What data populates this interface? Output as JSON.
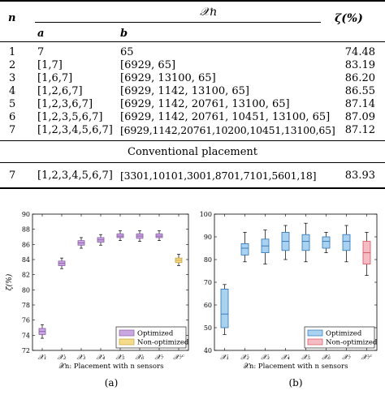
{
  "table": {
    "header": {
      "n": "n",
      "xn": "𝒳n",
      "zeta": "ζ(%)",
      "a": "a",
      "b": "b"
    },
    "rows": [
      {
        "n": "1",
        "a": "7",
        "b": "65",
        "zeta": "74.48"
      },
      {
        "n": "2",
        "a": "[1,7]",
        "b": "[6929, 65]",
        "zeta": "83.19"
      },
      {
        "n": "3",
        "a": "[1,6,7]",
        "b": "[6929, 13100, 65]",
        "zeta": "86.20"
      },
      {
        "n": "4",
        "a": "[1,2,6,7]",
        "b": "[6929, 1142, 13100, 65]",
        "zeta": "86.55"
      },
      {
        "n": "5",
        "a": "[1,2,3,6,7]",
        "b": "[6929, 1142, 20761, 13100, 65]",
        "zeta": "87.14"
      },
      {
        "n": "6",
        "a": "[1,2,3,5,6,7]",
        "b": "[6929, 1142, 20761, 10451, 13100, 65]",
        "zeta": "87.09"
      },
      {
        "n": "7",
        "a": "[1,2,3,4,5,6,7]",
        "b": "[6929,1142,20761,10200,10451,13100,65]",
        "zeta": "87.12"
      }
    ],
    "section_title": "Conventional placement",
    "conventional": {
      "n": "7",
      "a": "[1,2,3,4,5,6,7]",
      "b": "[3301,10101,3001,8701,7101,5601,18]",
      "zeta": "83.93"
    }
  },
  "chart_data": [
    {
      "type": "box",
      "panel_label": "(a)",
      "ylabel": "ζ(%)",
      "xlabel": "𝒳n: Placement with n sensors",
      "ylim": [
        72,
        90
      ],
      "yticks": [
        72,
        74,
        76,
        78,
        80,
        82,
        84,
        86,
        88,
        90
      ],
      "categories": [
        "𝒳1",
        "𝒳2",
        "𝒳3",
        "𝒳4",
        "𝒳5",
        "𝒳6",
        "𝒳7",
        "𝒳7c"
      ],
      "category_labels": [
        "𝒳₁",
        "𝒳₂",
        "𝒳₃",
        "𝒳₄",
        "𝒳₅",
        "𝒳₆",
        "𝒳₇",
        "𝒳₇ᶜ"
      ],
      "legend": [
        "Optimized",
        "Non-optimized"
      ],
      "legend_position": "bottom-right",
      "colors": {
        "optimized": "#c9a7e0",
        "optimized_edge": "#8a5aa8",
        "nonopt": "#f5dc8a",
        "nonopt_edge": "#c8a23c"
      },
      "series": [
        {
          "group": "optimized",
          "min": 73.6,
          "q1": 74.1,
          "median": 74.5,
          "q3": 74.9,
          "max": 75.4
        },
        {
          "group": "optimized",
          "min": 82.8,
          "q1": 83.2,
          "median": 83.5,
          "q3": 83.8,
          "max": 84.2
        },
        {
          "group": "optimized",
          "min": 85.5,
          "q1": 85.9,
          "median": 86.2,
          "q3": 86.5,
          "max": 86.9
        },
        {
          "group": "optimized",
          "min": 85.9,
          "q1": 86.3,
          "median": 86.6,
          "q3": 86.9,
          "max": 87.3
        },
        {
          "group": "optimized",
          "min": 86.5,
          "q1": 86.9,
          "median": 87.1,
          "q3": 87.4,
          "max": 87.8
        },
        {
          "group": "optimized",
          "min": 86.4,
          "q1": 86.8,
          "median": 87.1,
          "q3": 87.4,
          "max": 87.8
        },
        {
          "group": "optimized",
          "min": 86.5,
          "q1": 86.9,
          "median": 87.1,
          "q3": 87.4,
          "max": 87.8
        },
        {
          "group": "nonopt",
          "min": 83.2,
          "q1": 83.6,
          "median": 83.9,
          "q3": 84.2,
          "max": 84.7
        }
      ]
    },
    {
      "type": "box",
      "panel_label": "(b)",
      "ylabel": "",
      "xlabel": "𝒳n: Placement with n sensors",
      "ylim": [
        40,
        100
      ],
      "yticks": [
        40,
        50,
        60,
        70,
        80,
        90,
        100
      ],
      "categories": [
        "𝒳1",
        "𝒳2",
        "𝒳3",
        "𝒳4",
        "𝒳5",
        "𝒳6",
        "𝒳7",
        "𝒳7c"
      ],
      "category_labels": [
        "𝒳₁",
        "𝒳₂",
        "𝒳₃",
        "𝒳₄",
        "𝒳₅",
        "𝒳₆",
        "𝒳₇",
        "𝒳₇ᶜ"
      ],
      "legend": [
        "Optimized",
        "Non-optimized"
      ],
      "legend_position": "bottom-right",
      "colors": {
        "optimized": "#a9d1f0",
        "optimized_edge": "#2f74b5",
        "nonopt": "#f6bcc4",
        "nonopt_edge": "#d9505f"
      },
      "series": [
        {
          "group": "optimized",
          "min": 47,
          "q1": 50,
          "median": 56,
          "q3": 67,
          "max": 69
        },
        {
          "group": "optimized",
          "min": 79,
          "q1": 82,
          "median": 85,
          "q3": 87,
          "max": 92
        },
        {
          "group": "optimized",
          "min": 78,
          "q1": 83,
          "median": 86,
          "q3": 89,
          "max": 93
        },
        {
          "group": "optimized",
          "min": 80,
          "q1": 84,
          "median": 88,
          "q3": 92,
          "max": 95
        },
        {
          "group": "optimized",
          "min": 79,
          "q1": 84,
          "median": 88,
          "q3": 91,
          "max": 96
        },
        {
          "group": "optimized",
          "min": 83,
          "q1": 85,
          "median": 88,
          "q3": 90,
          "max": 92
        },
        {
          "group": "optimized",
          "min": 79,
          "q1": 84,
          "median": 88,
          "q3": 91,
          "max": 95
        },
        {
          "group": "nonopt",
          "min": 73,
          "q1": 78,
          "median": 83,
          "q3": 88,
          "max": 92
        }
      ]
    }
  ]
}
